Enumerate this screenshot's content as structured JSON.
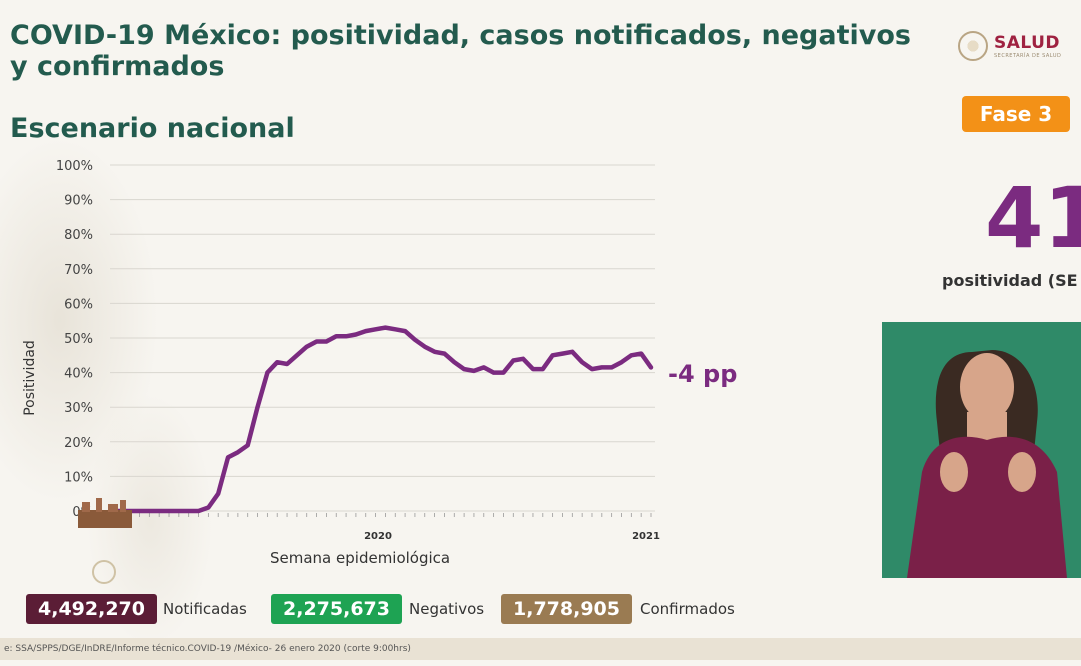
{
  "header": {
    "title": "COVID-19 México: positividad, casos notificados, negativos y confirmados",
    "subtitle": "Escenario nacional"
  },
  "logo": {
    "name": "SALUD",
    "sub": "SECRETARÍA DE SALUD"
  },
  "phase": {
    "label": "Fase 3"
  },
  "kpi": {
    "value": "41",
    "label": "positividad (SE"
  },
  "annotation": {
    "change": "-4 pp"
  },
  "stats": {
    "notificadas_value": "4,492,270",
    "notificadas_label": "Notificadas",
    "negativos_value": "2,275,673",
    "negativos_label": "Negativos",
    "confirmados_value": "1,778,905",
    "confirmados_label": "Confirmados"
  },
  "footer": {
    "source": "e: SSA/SPPS/DGE/InDRE/Informe técnico.COVID-19 /México- 26 enero 2020 (corte 9:00hrs)"
  },
  "colors": {
    "primary": "#235b4e",
    "line": "#7b2b80",
    "notificadas": "#5b1d36",
    "negativos": "#1ea353",
    "confirmados": "#9a7b52",
    "phase": "#f39117"
  },
  "chart_data": {
    "type": "line",
    "title": "",
    "xlabel": "Semana epidemiológica",
    "ylabel": "Positividad",
    "ylim": [
      0,
      100
    ],
    "yticks": [
      "0%",
      "10%",
      "20%",
      "30%",
      "40%",
      "50%",
      "60%",
      "70%",
      "80%",
      "90%",
      "100%"
    ],
    "year_labels": [
      "2020",
      "2021"
    ],
    "series": [
      {
        "name": "Positividad",
        "values": [
          0,
          0,
          0,
          0,
          0,
          0,
          0,
          0,
          0,
          0,
          1,
          5,
          15.5,
          17,
          19,
          30,
          40,
          43,
          42.5,
          45,
          47.5,
          49,
          49,
          50.5,
          50.5,
          51,
          52,
          52.5,
          53,
          52.5,
          52,
          49.5,
          47.5,
          46,
          45.5,
          43,
          41,
          40.5,
          41.5,
          40,
          40,
          43.5,
          44,
          41,
          41,
          45,
          45.5,
          46,
          43,
          41,
          41.5,
          41.5,
          43,
          45,
          45.5,
          41.5
        ]
      }
    ]
  }
}
